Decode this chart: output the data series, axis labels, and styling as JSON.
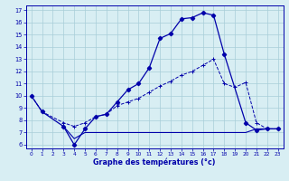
{
  "bg_color": "#d8eef3",
  "grid_color": "#a8cdd8",
  "line_color": "#0000aa",
  "xlabel": "Graphe des températures (°c)",
  "xlim": [
    -0.5,
    23.5
  ],
  "ylim": [
    5.7,
    17.4
  ],
  "yticks": [
    6,
    7,
    8,
    9,
    10,
    11,
    12,
    13,
    14,
    15,
    16,
    17
  ],
  "xticks": [
    0,
    1,
    2,
    3,
    4,
    5,
    6,
    7,
    8,
    9,
    10,
    11,
    12,
    13,
    14,
    15,
    16,
    17,
    18,
    19,
    20,
    21,
    22,
    23
  ],
  "line1_x": [
    0,
    1,
    3,
    4,
    5,
    6,
    7,
    8,
    9,
    10,
    11,
    12,
    13,
    14,
    15,
    16,
    17,
    18,
    20,
    21,
    22,
    23
  ],
  "line1_y": [
    10.0,
    8.7,
    7.5,
    6.0,
    7.3,
    8.3,
    8.5,
    9.5,
    10.5,
    11.0,
    12.3,
    14.7,
    15.1,
    16.3,
    16.4,
    16.8,
    16.6,
    13.4,
    7.8,
    7.2,
    7.3,
    7.3
  ],
  "line2_x": [
    0,
    1,
    3,
    4,
    5,
    6,
    7,
    8,
    9,
    10,
    11,
    12,
    13,
    14,
    15,
    16,
    17,
    18,
    19,
    20,
    21,
    22,
    23
  ],
  "line2_y": [
    10.0,
    8.7,
    7.8,
    7.5,
    7.8,
    8.3,
    8.5,
    9.2,
    9.5,
    9.8,
    10.3,
    10.8,
    11.2,
    11.7,
    12.0,
    12.5,
    13.0,
    11.0,
    10.7,
    11.1,
    7.8,
    7.3,
    7.3
  ],
  "line3_x": [
    3,
    4,
    5,
    6,
    7,
    8,
    9,
    10,
    11,
    12,
    13,
    14,
    15,
    16,
    17,
    18,
    19,
    20,
    21,
    22,
    23
  ],
  "line3_y": [
    7.5,
    6.5,
    7.0,
    7.0,
    7.0,
    7.0,
    7.0,
    7.0,
    7.0,
    7.0,
    7.0,
    7.0,
    7.0,
    7.0,
    7.0,
    7.0,
    7.0,
    7.0,
    7.3,
    7.3,
    7.3
  ]
}
